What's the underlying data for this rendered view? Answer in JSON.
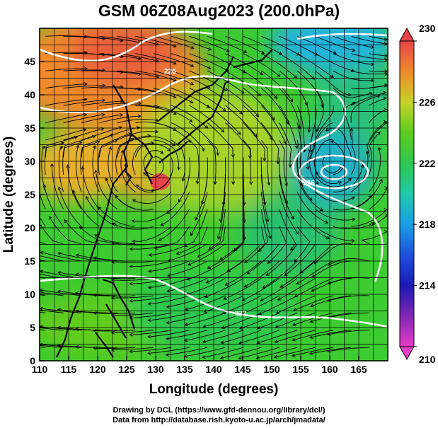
{
  "title": "GSM 06Z08Aug2023 (200.0hPa)",
  "credits": {
    "line1": "Drawing by DCL (https://www.gfd-dennou.org/library/dcl/)",
    "line2": "Data from http://database.rish.kyoto-u.ac.jp/arch/jmadata/"
  },
  "map": {
    "region": {
      "lon": [
        110,
        170
      ],
      "lat": [
        0,
        50
      ]
    },
    "xlabel": "Longitude (degrees)",
    "ylabel": "Latitude  (degrees)",
    "xticks": [
      "110",
      "115",
      "120",
      "125",
      "130",
      "135",
      "140",
      "145",
      "150",
      "155",
      "160",
      "165"
    ],
    "yticks": [
      "0",
      "5",
      "10",
      "15",
      "20",
      "25",
      "30",
      "35",
      "40",
      "45"
    ],
    "grid": true,
    "field": "temperature (K), shaded",
    "vectors": "streamlines",
    "contour_labels": [
      "226",
      "225",
      "222"
    ],
    "features": {
      "warm_high_center": {
        "lon": 130,
        "lat": 29.5
      },
      "cyclonic_center": {
        "lon": 160,
        "lat": 30
      }
    }
  },
  "colorbar": {
    "labels": [
      "230",
      "226",
      "222",
      "218",
      "214",
      "210"
    ],
    "range": [
      210,
      230
    ],
    "colors": {
      "230": "#e6454a",
      "228": "#ef8a2b",
      "226": "#c8d22a",
      "224": "#5ccc1e",
      "222": "#2ec850",
      "220": "#20c8a8",
      "218": "#1aa0e6",
      "216": "#1e50dc",
      "214": "#1a1ab4",
      "212": "#8228b4",
      "210": "#e63cc8"
    }
  }
}
